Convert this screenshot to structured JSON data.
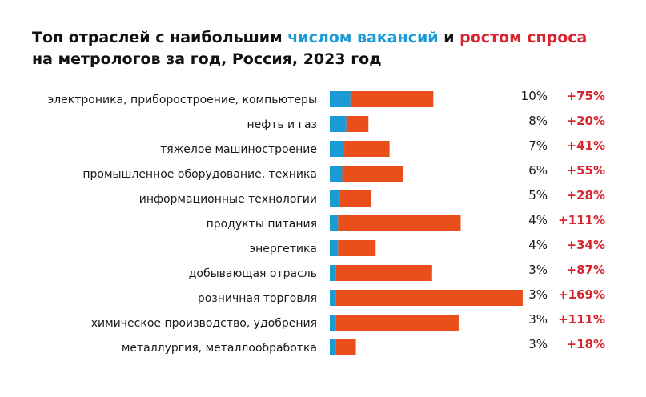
{
  "title": {
    "part1": "Топ отраслей с наибольшим ",
    "highlight_vacancies": "числом вакансий",
    "part2": " и ",
    "highlight_growth": "ростом спроса",
    "line2": "на метрологов за год, Россия, 2023 год"
  },
  "colors": {
    "vacancies": "#1b9ad6",
    "growth": "#e94e1b",
    "growth_text": "#d7262f",
    "text": "#1a1a1a"
  },
  "chart_data": {
    "type": "bar",
    "orientation": "horizontal",
    "stacked": true,
    "categories": [
      "электроника, приборостроение, компьютеры",
      "нефть и газ",
      "тяжелое машиностроение",
      "промышленное оборудование, техника",
      "информационные технологии",
      "продукты питания",
      "энергетика",
      "добывающая отрасль",
      "розничная торговля",
      "химическое производство, удобрения",
      "металлургия, металлообработка"
    ],
    "series": [
      {
        "name": "числом вакансий",
        "color": "#1b9ad6",
        "values": [
          10,
          8,
          7,
          6,
          5,
          4,
          4,
          3,
          3,
          3,
          3
        ]
      },
      {
        "name": "ростом спроса",
        "color": "#e94e1b",
        "values": [
          75,
          20,
          41,
          55,
          28,
          111,
          34,
          87,
          169,
          111,
          18
        ]
      }
    ],
    "share_labels": [
      "10%",
      "8%",
      "7%",
      "6%",
      "5%",
      "4%",
      "4%",
      "3%",
      "3%",
      "3%",
      "3%"
    ],
    "growth_labels": [
      "+75%",
      "+20%",
      "+41%",
      "+55%",
      "+28%",
      "+111%",
      "+34%",
      "+87%",
      "+169%",
      "+111%",
      "+18%"
    ],
    "axes_visible": false,
    "grid": false
  }
}
